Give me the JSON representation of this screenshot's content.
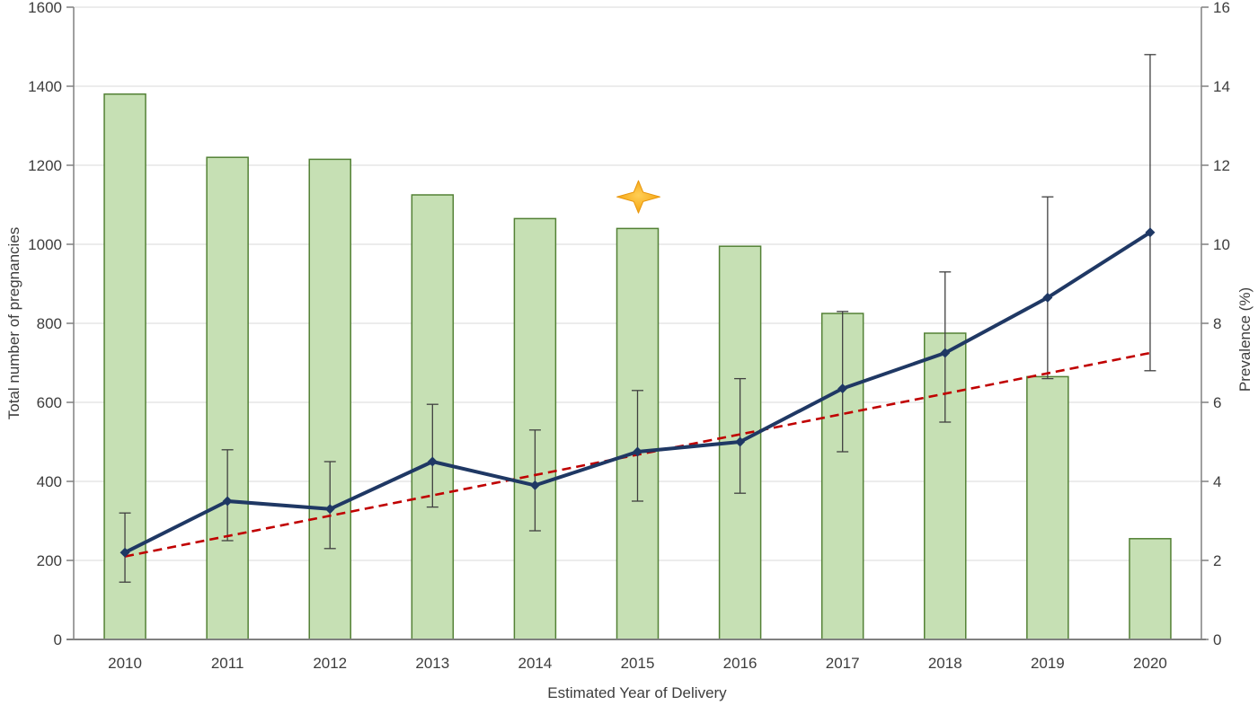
{
  "chart_data": {
    "type": "combo-bar-line",
    "title": "",
    "legend": "none",
    "grid": true,
    "categories": [
      "2010",
      "2011",
      "2012",
      "2013",
      "2014",
      "2015",
      "2016",
      "2017",
      "2018",
      "2019",
      "2020"
    ],
    "x_axis": {
      "label": "Estimated Year of Delivery"
    },
    "left_axis": {
      "label": "Total number of pregnancies",
      "min": 0,
      "max": 1600,
      "step": 200
    },
    "right_axis": {
      "label": "Prevalence (%)",
      "min": 0,
      "max": 16,
      "step": 2
    },
    "series": [
      {
        "name": "Total number of pregnancies",
        "type": "bar",
        "axis": "left",
        "values": [
          1380,
          1220,
          1215,
          1125,
          1065,
          1040,
          995,
          825,
          775,
          665,
          255
        ],
        "fill": "#C6E0B4",
        "stroke": "#538135"
      },
      {
        "name": "Prevalence (%)",
        "type": "line",
        "axis": "right",
        "marker": "diamond",
        "values": [
          2.2,
          3.5,
          3.3,
          4.5,
          3.9,
          4.75,
          5.0,
          6.35,
          7.25,
          8.65,
          10.3
        ],
        "ci_low": [
          1.45,
          2.5,
          2.3,
          3.35,
          2.75,
          3.5,
          3.7,
          4.75,
          5.5,
          6.6,
          6.8
        ],
        "ci_high": [
          3.2,
          4.8,
          4.5,
          5.95,
          5.3,
          6.3,
          6.6,
          8.3,
          9.3,
          11.2,
          14.8
        ],
        "color": "#1F3864",
        "error_color": "#404040"
      },
      {
        "name": "Linear trend",
        "type": "trend-line",
        "axis": "right",
        "style": "dashed",
        "endpoints": [
          2.1,
          7.25
        ],
        "color": "#C00000"
      }
    ],
    "annotation": {
      "type": "four-point-star",
      "category": "2015",
      "right_axis_value": 11.2,
      "fill_center": "#FFCE55",
      "fill_edge": "#F29B02",
      "stroke": "#E8960C"
    },
    "colors": {
      "grid": "#D9D9D9",
      "axis_line": "#808080",
      "text": "#3D3D3D",
      "background": "#FFFFFF"
    }
  }
}
